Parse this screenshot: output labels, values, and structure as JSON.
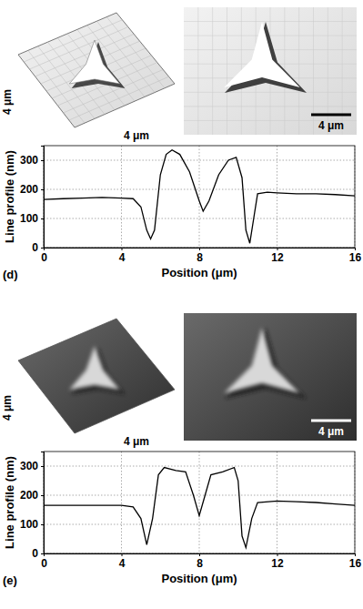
{
  "chart_data": [
    {
      "type": "line",
      "panel": "(d)",
      "x_label": "Position (μm)",
      "y_label": "Line profile (nm)",
      "xlim": [
        0,
        16
      ],
      "xticks": [
        0,
        4,
        8,
        12,
        16
      ],
      "ylim": [
        0,
        350
      ],
      "yticks": [
        0,
        100,
        200,
        300
      ],
      "grid": true,
      "color": "#000000",
      "x": [
        0,
        1,
        2,
        3,
        4,
        4.6,
        5.0,
        5.3,
        5.5,
        5.7,
        6.0,
        6.3,
        6.6,
        7.0,
        7.5,
        8.0,
        8.2,
        8.5,
        9.0,
        9.5,
        9.9,
        10.2,
        10.4,
        10.6,
        10.8,
        11.0,
        11.5,
        12,
        13,
        14,
        15,
        16
      ],
      "values": [
        165,
        168,
        170,
        172,
        170,
        168,
        140,
        60,
        30,
        60,
        250,
        320,
        335,
        320,
        260,
        160,
        125,
        160,
        250,
        300,
        310,
        240,
        60,
        15,
        100,
        185,
        190,
        188,
        185,
        185,
        182,
        178
      ]
    },
    {
      "type": "line",
      "panel": "(e)",
      "x_label": "Position (μm)",
      "y_label": "Line profile (nm)",
      "xlim": [
        0,
        16
      ],
      "xticks": [
        0,
        4,
        8,
        12,
        16
      ],
      "ylim": [
        0,
        350
      ],
      "yticks": [
        0,
        100,
        200,
        300
      ],
      "grid": true,
      "color": "#000000",
      "x": [
        0,
        1,
        2,
        3,
        4,
        4.6,
        5.0,
        5.3,
        5.6,
        5.9,
        6.2,
        6.8,
        7.3,
        7.7,
        8.0,
        8.3,
        8.6,
        9.2,
        9.8,
        10.0,
        10.2,
        10.4,
        10.7,
        11.0,
        12,
        13,
        14,
        15,
        16
      ],
      "values": [
        165,
        165,
        165,
        165,
        165,
        160,
        120,
        30,
        120,
        270,
        295,
        285,
        280,
        200,
        130,
        200,
        270,
        280,
        295,
        250,
        60,
        20,
        120,
        175,
        180,
        178,
        175,
        170,
        165
      ]
    }
  ],
  "images": [
    {
      "scale_bar_3d_x": "4 μm",
      "scale_bar_3d_y": "4 μm",
      "scale_bar_top": "4 μm"
    },
    {
      "scale_bar_3d_x": "4 μm",
      "scale_bar_3d_y": "4 μm",
      "scale_bar_top": "4 μm"
    }
  ]
}
